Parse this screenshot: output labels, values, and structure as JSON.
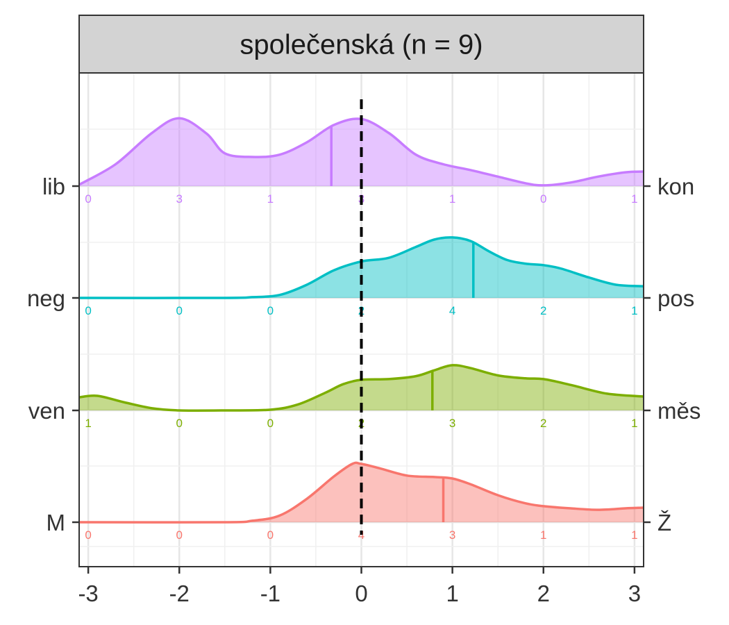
{
  "chart_data": {
    "type": "area",
    "panel_title": "společenská (n = 9)",
    "x_ticks": [
      -3,
      -2,
      -1,
      0,
      1,
      2,
      3
    ],
    "x_tick_labels": [
      "-3",
      "-2",
      "-1",
      "0",
      "1",
      "2",
      "3"
    ],
    "xlim": [
      -3.1,
      3.1
    ],
    "reference_line_x": 0,
    "grid": true,
    "series": [
      {
        "left_label": "lib",
        "right_label": "kon",
        "color": "#C77CFF",
        "mean": -0.33,
        "count_x": [
          -3,
          -2,
          -1,
          0,
          1,
          2,
          3
        ],
        "counts": [
          "0",
          "3",
          "1",
          "3",
          "1",
          "0",
          "1"
        ],
        "density": [
          [
            -3.1,
            0.02
          ],
          [
            -2.7,
            0.3
          ],
          [
            -2.3,
            0.73
          ],
          [
            -2.0,
            0.93
          ],
          [
            -1.7,
            0.72
          ],
          [
            -1.5,
            0.45
          ],
          [
            -1.2,
            0.4
          ],
          [
            -0.9,
            0.43
          ],
          [
            -0.6,
            0.6
          ],
          [
            -0.3,
            0.84
          ],
          [
            0.0,
            0.92
          ],
          [
            0.3,
            0.73
          ],
          [
            0.6,
            0.43
          ],
          [
            0.9,
            0.3
          ],
          [
            1.2,
            0.22
          ],
          [
            1.5,
            0.13
          ],
          [
            1.8,
            0.04
          ],
          [
            2.0,
            0.01
          ],
          [
            2.3,
            0.05
          ],
          [
            2.6,
            0.13
          ],
          [
            2.9,
            0.19
          ],
          [
            3.1,
            0.2
          ]
        ]
      },
      {
        "left_label": "neg",
        "right_label": "pos",
        "color": "#00BFC4",
        "mean": 1.23,
        "count_x": [
          -3,
          -2,
          -1,
          0,
          1,
          2,
          3
        ],
        "counts": [
          "0",
          "0",
          "0",
          "2",
          "4",
          "2",
          "1"
        ],
        "density": [
          [
            -3.1,
            0
          ],
          [
            -1.5,
            0
          ],
          [
            -1.2,
            0.01
          ],
          [
            -0.9,
            0.04
          ],
          [
            -0.6,
            0.18
          ],
          [
            -0.3,
            0.38
          ],
          [
            0.0,
            0.5
          ],
          [
            0.3,
            0.55
          ],
          [
            0.6,
            0.7
          ],
          [
            0.8,
            0.8
          ],
          [
            1.0,
            0.83
          ],
          [
            1.2,
            0.78
          ],
          [
            1.4,
            0.64
          ],
          [
            1.6,
            0.52
          ],
          [
            1.8,
            0.47
          ],
          [
            2.0,
            0.45
          ],
          [
            2.2,
            0.4
          ],
          [
            2.5,
            0.28
          ],
          [
            2.8,
            0.18
          ],
          [
            3.1,
            0.16
          ]
        ]
      },
      {
        "left_label": "ven",
        "right_label": "měs",
        "color": "#7CAE00",
        "mean": 0.78,
        "count_x": [
          -3,
          -2,
          -1,
          0,
          1,
          2,
          3
        ],
        "counts": [
          "1",
          "0",
          "0",
          "2",
          "3",
          "2",
          "1"
        ],
        "density": [
          [
            -3.1,
            0.18
          ],
          [
            -2.9,
            0.2
          ],
          [
            -2.6,
            0.11
          ],
          [
            -2.3,
            0.03
          ],
          [
            -2.0,
            0.0
          ],
          [
            -1.5,
            0.0
          ],
          [
            -1.0,
            0.01
          ],
          [
            -0.7,
            0.08
          ],
          [
            -0.4,
            0.24
          ],
          [
            -0.2,
            0.36
          ],
          [
            0.0,
            0.42
          ],
          [
            0.3,
            0.43
          ],
          [
            0.6,
            0.47
          ],
          [
            0.8,
            0.55
          ],
          [
            1.0,
            0.62
          ],
          [
            1.2,
            0.58
          ],
          [
            1.5,
            0.48
          ],
          [
            1.8,
            0.44
          ],
          [
            2.0,
            0.43
          ],
          [
            2.3,
            0.35
          ],
          [
            2.7,
            0.23
          ],
          [
            3.1,
            0.19
          ]
        ]
      },
      {
        "left_label": "M",
        "right_label": "Ž",
        "color": "#F8766D",
        "mean": 0.9,
        "count_x": [
          -3,
          -2,
          -1,
          0,
          1,
          2,
          3
        ],
        "counts": [
          "0",
          "0",
          "0",
          "4",
          "3",
          "1",
          "1"
        ],
        "density": [
          [
            -3.1,
            0
          ],
          [
            -1.5,
            0
          ],
          [
            -1.2,
            0.02
          ],
          [
            -0.9,
            0.09
          ],
          [
            -0.6,
            0.32
          ],
          [
            -0.3,
            0.63
          ],
          [
            -0.1,
            0.8
          ],
          [
            0.0,
            0.8
          ],
          [
            0.2,
            0.74
          ],
          [
            0.5,
            0.64
          ],
          [
            0.8,
            0.62
          ],
          [
            1.0,
            0.6
          ],
          [
            1.2,
            0.52
          ],
          [
            1.5,
            0.37
          ],
          [
            1.8,
            0.26
          ],
          [
            2.0,
            0.22
          ],
          [
            2.3,
            0.19
          ],
          [
            2.6,
            0.17
          ],
          [
            2.9,
            0.19
          ],
          [
            3.1,
            0.2
          ]
        ]
      }
    ]
  }
}
